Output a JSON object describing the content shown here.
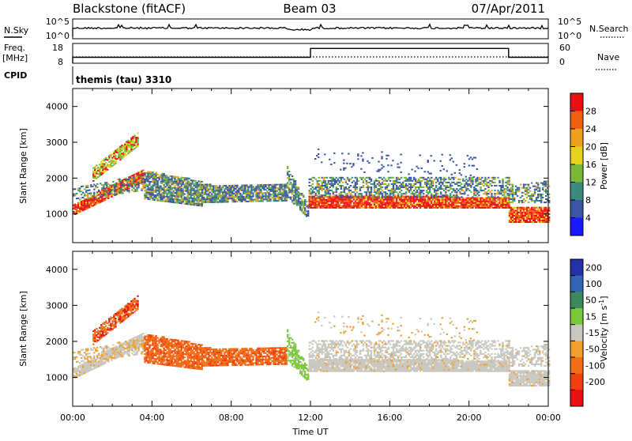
{
  "header": {
    "station": "Blackstone (fitACF)",
    "beam": "Beam 03",
    "date": "07/Apr/2011"
  },
  "strips": {
    "nsky_label": "N.Sky",
    "nsky_ticks": [
      "10^5",
      "10^0"
    ],
    "nsearch_label": "N.Search",
    "nsearch_ticks": [
      "10^5",
      "10^0"
    ],
    "freq_label": "Freq.",
    "freq_unit": "[MHz]",
    "freq_ticks": [
      "18",
      "8"
    ],
    "nave_label": "Nave",
    "nave_ticks": [
      "60",
      "0"
    ],
    "cpid_label": "CPID",
    "cpid_value": "themis (tau) 3310",
    "freq_steps": [
      {
        "t": 0,
        "value": 11
      },
      {
        "t": 12,
        "value": 15.5
      },
      {
        "t": 22,
        "value": 11
      }
    ]
  },
  "chart_data": [
    {
      "type": "heatmap",
      "name": "power",
      "ylabel": "Slant Range [km]",
      "yticks": [
        1000,
        2000,
        3000,
        4000
      ],
      "xlim": [
        0,
        24
      ],
      "ylim": [
        200,
        4500
      ],
      "colorbar_label": "Power [dB]",
      "colorbar_ticks": [
        "4",
        "8",
        "12",
        "16",
        "20",
        "24",
        "28"
      ],
      "colorbar_colors": [
        "#1a1aff",
        "#3a55a5",
        "#3c8a7c",
        "#7ab83a",
        "#e6d21c",
        "#f0a020",
        "#f06010",
        "#e81010"
      ]
    },
    {
      "type": "heatmap",
      "name": "velocity",
      "ylabel": "Slant Range [km]",
      "yticks": [
        1000,
        2000,
        3000,
        4000
      ],
      "xlim": [
        0,
        24
      ],
      "ylim": [
        200,
        4500
      ],
      "colorbar_label": "Velocity [m s",
      "colorbar_label_sup": "-1",
      "colorbar_label_end": "]",
      "colorbar_ticks": [
        "200",
        "100",
        "50",
        "15",
        "-15",
        "-50",
        "-100",
        "-200"
      ],
      "colorbar_colors": [
        "#2430a8",
        "#3464b4",
        "#3c8a5c",
        "#7cc83c",
        "#c8c8c0",
        "#f0a030",
        "#f07018",
        "#f04010",
        "#e81010"
      ]
    }
  ],
  "xaxis": {
    "ticks": [
      "00:00",
      "04:00",
      "08:00",
      "12:00",
      "16:00",
      "20:00",
      "00:00"
    ],
    "label": "Time UT"
  }
}
